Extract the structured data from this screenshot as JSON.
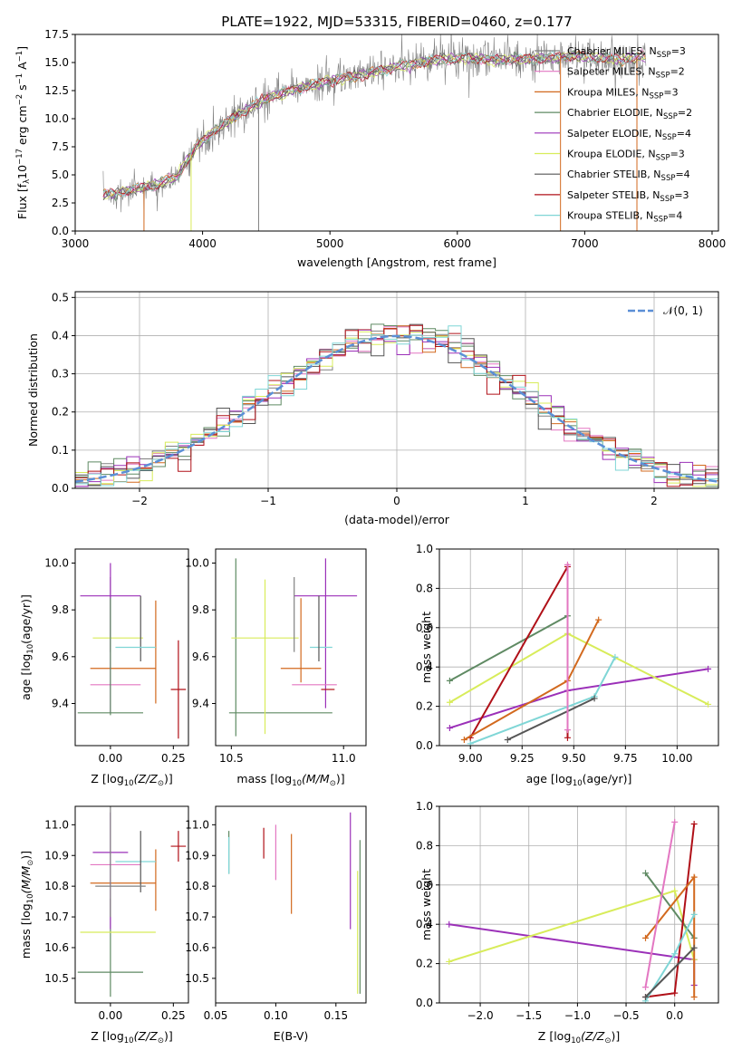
{
  "colors": {
    "chabrier_miles": "#808080",
    "salpeter_miles": "#e377c2",
    "kroupa_miles": "#d2691e",
    "chabrier_elodie": "#5f8a63",
    "salpeter_elodie": "#9b30b8",
    "kroupa_elodie": "#d8ec5a",
    "chabrier_stelib": "#555555",
    "salpeter_stelib": "#b01018",
    "kroupa_stelib": "#7fd6d6",
    "gaussian": "#5b8fd6"
  },
  "chart_data": [
    {
      "id": "spectrum",
      "type": "line",
      "title": "PLATE=1922, MJD=53315, FIBERID=0460, z=0.177",
      "xlabel": "wavelength [Angstrom, rest frame]",
      "ylabel_parts": [
        "Flux [f",
        "λ",
        "10",
        "−17",
        " erg cm",
        "−2",
        " s",
        "−1",
        " A",
        "−1",
        "]"
      ],
      "xlim": [
        3000,
        8050
      ],
      "ylim": [
        0,
        17.5
      ],
      "xticks": [
        3000,
        4000,
        5000,
        6000,
        7000,
        8000
      ],
      "yticks": [
        0.0,
        2.5,
        5.0,
        7.5,
        10.0,
        12.5,
        15.0,
        17.5
      ],
      "ytick_labels": [
        "0.0",
        "2.5",
        "5.0",
        "7.5",
        "10.0",
        "12.5",
        "15.0",
        "17.5"
      ],
      "legend_position": "right",
      "continuum": {
        "x": [
          3220,
          3400,
          3600,
          3800,
          3950,
          4100,
          4300,
          4500,
          4700,
          4900,
          5100,
          5300,
          5500,
          5700,
          5900,
          6100,
          6300,
          6500,
          6700,
          6900,
          7100,
          7300,
          7500
        ],
        "y": [
          3.2,
          3.6,
          4.0,
          4.8,
          7.5,
          9.0,
          10.5,
          11.8,
          12.5,
          13.1,
          13.6,
          14.0,
          14.6,
          15.0,
          15.3,
          15.4,
          15.2,
          15.3,
          15.4,
          15.6,
          15.4,
          15.3,
          15.5
        ]
      },
      "spikes": [
        {
          "x": 3540,
          "y": 0.0
        },
        {
          "x": 3910,
          "y": 0.0
        },
        {
          "x": 4440,
          "y": 0.0
        },
        {
          "x": 6810,
          "y": 0.0
        },
        {
          "x": 7410,
          "y": 0.0
        }
      ],
      "series": [
        {
          "key": "chabrier_miles",
          "lib": "Chabrier MILES",
          "n": "3"
        },
        {
          "key": "salpeter_miles",
          "lib": "Salpeter MILES",
          "n": "2"
        },
        {
          "key": "kroupa_miles",
          "lib": "Kroupa MILES",
          "n": "3"
        },
        {
          "key": "chabrier_elodie",
          "lib": "Chabrier ELODIE",
          "n": "2"
        },
        {
          "key": "salpeter_elodie",
          "lib": "Salpeter ELODIE",
          "n": "4"
        },
        {
          "key": "kroupa_elodie",
          "lib": "Kroupa ELODIE",
          "n": "3"
        },
        {
          "key": "chabrier_stelib",
          "lib": "Chabrier STELIB",
          "n": "4"
        },
        {
          "key": "salpeter_stelib",
          "lib": "Salpeter STELIB",
          "n": "3"
        },
        {
          "key": "kroupa_stelib",
          "lib": "Kroupa STELIB",
          "n": "4"
        }
      ],
      "legend_name_prefix": "N",
      "legend_name_sub": "SSP"
    },
    {
      "id": "residuals",
      "type": "line",
      "xlabel": "(data-model)/error",
      "ylabel": "Normed distribution",
      "xlim": [
        -2.5,
        2.5
      ],
      "ylim": [
        0,
        0.515
      ],
      "xticks": [
        -2,
        -1,
        0,
        1,
        2
      ],
      "xtick_labels": [
        "−2",
        "−1",
        "0",
        "1",
        "2"
      ],
      "yticks": [
        0.0,
        0.1,
        0.2,
        0.3,
        0.4,
        0.5
      ],
      "ytick_labels": [
        "0.0",
        "0.1",
        "0.2",
        "0.3",
        "0.4",
        "0.5"
      ],
      "grid": true,
      "gaussian_label": "𝒩(0, 1)",
      "legend_position": "top-right",
      "bin_width": 0.1,
      "bin_start": -2.5,
      "series_keys": [
        "chabrier_miles",
        "salpeter_miles",
        "kroupa_miles",
        "chabrier_elodie",
        "salpeter_elodie",
        "kroupa_elodie",
        "chabrier_stelib",
        "salpeter_stelib",
        "kroupa_stelib"
      ]
    },
    {
      "id": "z_age",
      "type": "scatter",
      "xlabel_parts": [
        "Z [log",
        "10",
        "(Z/Z",
        "⊙",
        ")]"
      ],
      "ylabel_parts": [
        "age  [log",
        "10",
        "(age/yr)]"
      ],
      "xlim": [
        -0.14,
        0.31
      ],
      "ylim": [
        9.22,
        10.06
      ],
      "xticks": [
        0.0,
        0.25
      ],
      "xtick_labels": [
        "0.00",
        "0.25"
      ],
      "yticks": [
        9.4,
        9.6,
        9.8,
        10.0
      ],
      "ytick_labels": [
        "9.4",
        "9.6",
        "9.8",
        "10.0"
      ],
      "points": [
        {
          "key": "chabrier_miles",
          "x": 0.0,
          "y": 9.78,
          "xerr": 0.0,
          "yerr": 0.16
        },
        {
          "key": "salpeter_miles",
          "x": 0.02,
          "y": 9.48,
          "xerr": 0.1,
          "yerr": 0.0
        },
        {
          "key": "kroupa_miles",
          "x": 0.05,
          "y": 9.55,
          "xerr": 0.13,
          "yerr": 0.0
        },
        {
          "key": "kroupa_miles",
          "x": 0.18,
          "y": 9.62,
          "xerr": 0.0,
          "yerr": 0.22
        },
        {
          "key": "chabrier_elodie",
          "x": 0.0,
          "y": 9.36,
          "xerr": 0.13,
          "yerr": 0.0
        },
        {
          "key": "salpeter_elodie",
          "x": 0.0,
          "y": 9.86,
          "xerr": 0.12,
          "yerr": 0.0
        },
        {
          "key": "salpeter_elodie",
          "x": 0.0,
          "y": 9.68,
          "xerr": 0.0,
          "yerr": 0.32
        },
        {
          "key": "kroupa_elodie",
          "x": 0.03,
          "y": 9.68,
          "xerr": 0.1,
          "yerr": 0.0
        },
        {
          "key": "chabrier_stelib",
          "x": 0.12,
          "y": 9.72,
          "xerr": 0.0,
          "yerr": 0.14
        },
        {
          "key": "salpeter_stelib",
          "x": 0.27,
          "y": 9.46,
          "xerr": 0.03,
          "yerr": 0.21
        },
        {
          "key": "kroupa_stelib",
          "x": 0.1,
          "y": 9.64,
          "xerr": 0.08,
          "yerr": 0.0
        },
        {
          "key": "chabrier_elodie",
          "x": 0.0,
          "y": 9.6,
          "xerr": 0.0,
          "yerr": 0.25
        }
      ]
    },
    {
      "id": "mass_age",
      "type": "scatter",
      "xlabel_parts": [
        "mass [log",
        "10",
        "(M/M",
        "⊙",
        ")]"
      ],
      "xlim": [
        10.43,
        11.1
      ],
      "ylim": [
        9.22,
        10.06
      ],
      "xticks": [
        10.5,
        11.0
      ],
      "xtick_labels": [
        "10.5",
        "11.0"
      ],
      "yticks": [
        9.4,
        9.6,
        9.8,
        10.0
      ],
      "ytick_labels": [
        "9.4",
        "9.6",
        "9.8",
        "10.0"
      ],
      "points": [
        {
          "key": "chabrier_elodie",
          "x": 10.52,
          "y": 9.64,
          "xerr": 0.0,
          "yerr": 0.38
        },
        {
          "key": "chabrier_elodie",
          "x": 10.72,
          "y": 9.36,
          "xerr": 0.23,
          "yerr": 0.0
        },
        {
          "key": "kroupa_elodie",
          "x": 10.65,
          "y": 9.68,
          "xerr": 0.15,
          "yerr": 0.0
        },
        {
          "key": "kroupa_elodie",
          "x": 10.65,
          "y": 9.6,
          "xerr": 0.0,
          "yerr": 0.33
        },
        {
          "key": "salpeter_elodie",
          "x": 10.92,
          "y": 9.86,
          "xerr": 0.14,
          "yerr": 0.0
        },
        {
          "key": "salpeter_elodie",
          "x": 10.92,
          "y": 9.7,
          "xerr": 0.0,
          "yerr": 0.32
        },
        {
          "key": "kroupa_miles",
          "x": 10.81,
          "y": 9.55,
          "xerr": 0.09,
          "yerr": 0.0
        },
        {
          "key": "kroupa_miles",
          "x": 10.81,
          "y": 9.67,
          "xerr": 0.0,
          "yerr": 0.18
        },
        {
          "key": "salpeter_miles",
          "x": 10.87,
          "y": 9.48,
          "xerr": 0.1,
          "yerr": 0.0
        },
        {
          "key": "salpeter_stelib",
          "x": 10.93,
          "y": 9.46,
          "xerr": 0.03,
          "yerr": 0.0
        },
        {
          "key": "kroupa_stelib",
          "x": 10.9,
          "y": 9.64,
          "xerr": 0.05,
          "yerr": 0.0
        },
        {
          "key": "chabrier_stelib",
          "x": 10.89,
          "y": 9.72,
          "xerr": 0.0,
          "yerr": 0.14
        },
        {
          "key": "chabrier_miles",
          "x": 10.78,
          "y": 9.78,
          "xerr": 0.0,
          "yerr": 0.16
        }
      ]
    },
    {
      "id": "age_weight",
      "type": "line",
      "xlabel_parts": [
        "age  [log",
        "10",
        "(age/yr)]"
      ],
      "ylabel": "mass weight",
      "xlim": [
        8.85,
        10.2
      ],
      "ylim": [
        0,
        1.0
      ],
      "xticks": [
        9.0,
        9.25,
        9.5,
        9.75,
        10.0
      ],
      "xtick_labels": [
        "9.00",
        "9.25",
        "9.50",
        "9.75",
        "10.00"
      ],
      "yticks": [
        0.0,
        0.2,
        0.4,
        0.6,
        0.8,
        1.0
      ],
      "ytick_labels": [
        "0.0",
        "0.2",
        "0.4",
        "0.6",
        "0.8",
        "1.0"
      ],
      "grid": true,
      "lines": [
        {
          "key": "chabrier_elodie",
          "x": [
            8.9,
            9.47
          ],
          "y": [
            0.33,
            0.66
          ]
        },
        {
          "key": "salpeter_elodie",
          "x": [
            8.9,
            9.47,
            10.15
          ],
          "y": [
            0.09,
            0.28,
            0.39
          ]
        },
        {
          "key": "kroupa_elodie",
          "x": [
            8.9,
            9.47,
            10.15
          ],
          "y": [
            0.22,
            0.57,
            0.21
          ]
        },
        {
          "key": "salpeter_stelib",
          "x": [
            9.0,
            9.47,
            9.47
          ],
          "y": [
            0.04,
            0.91,
            0.04
          ]
        },
        {
          "key": "kroupa_miles",
          "x": [
            8.97,
            9.47,
            9.62
          ],
          "y": [
            0.03,
            0.33,
            0.64
          ]
        },
        {
          "key": "kroupa_stelib",
          "x": [
            9.0,
            9.6,
            9.7
          ],
          "y": [
            0.01,
            0.25,
            0.45
          ]
        },
        {
          "key": "chabrier_stelib",
          "x": [
            9.18,
            9.6
          ],
          "y": [
            0.03,
            0.24
          ]
        },
        {
          "key": "salpeter_miles",
          "x": [
            9.47,
            9.47
          ],
          "y": [
            0.08,
            0.92
          ]
        }
      ]
    },
    {
      "id": "z_mass",
      "type": "scatter",
      "xlabel_parts": [
        "Z [log",
        "10",
        "(Z/Z",
        "⊙",
        ")]"
      ],
      "ylabel_parts": [
        "mass [log",
        "10",
        "(M/M",
        "⊙",
        ")]"
      ],
      "xlim": [
        -0.14,
        0.31
      ],
      "ylim": [
        10.42,
        11.06
      ],
      "xticks": [
        0.0,
        0.25
      ],
      "xtick_labels": [
        "0.00",
        "0.25"
      ],
      "yticks": [
        10.5,
        10.6,
        10.7,
        10.8,
        10.9,
        11.0
      ],
      "ytick_labels": [
        "10.5",
        "10.6",
        "10.7",
        "10.8",
        "10.9",
        "11.0"
      ],
      "points": [
        {
          "key": "chabrier_elodie",
          "x": 0.0,
          "y": 10.52,
          "xerr": 0.13,
          "yerr": 0.0
        },
        {
          "key": "chabrier_elodie",
          "x": 0.0,
          "y": 10.6,
          "xerr": 0.0,
          "yerr": 0.16
        },
        {
          "key": "kroupa_elodie",
          "x": 0.03,
          "y": 10.65,
          "xerr": 0.15,
          "yerr": 0.0
        },
        {
          "key": "kroupa_miles",
          "x": 0.05,
          "y": 10.81,
          "xerr": 0.13,
          "yerr": 0.0
        },
        {
          "key": "kroupa_miles",
          "x": 0.18,
          "y": 10.82,
          "xerr": 0.0,
          "yerr": 0.1
        },
        {
          "key": "salpeter_miles",
          "x": 0.02,
          "y": 10.87,
          "xerr": 0.1,
          "yerr": 0.0
        },
        {
          "key": "salpeter_elodie",
          "x": 0.0,
          "y": 10.91,
          "xerr": 0.07,
          "yerr": 0.0
        },
        {
          "key": "salpeter_elodie",
          "x": 0.0,
          "y": 10.85,
          "xerr": 0.0,
          "yerr": 0.19
        },
        {
          "key": "chabrier_miles",
          "x": 0.0,
          "y": 10.9,
          "xerr": 0.0,
          "yerr": 0.2
        },
        {
          "key": "kroupa_stelib",
          "x": 0.1,
          "y": 10.88,
          "xerr": 0.08,
          "yerr": 0.0
        },
        {
          "key": "chabrier_stelib",
          "x": 0.12,
          "y": 10.88,
          "xerr": 0.0,
          "yerr": 0.1
        },
        {
          "key": "salpeter_stelib",
          "x": 0.27,
          "y": 10.93,
          "xerr": 0.03,
          "yerr": 0.05
        },
        {
          "key": "chabrier_miles",
          "x": 0.04,
          "y": 10.8,
          "xerr": 0.1,
          "yerr": 0.0
        }
      ]
    },
    {
      "id": "ebv_mass",
      "type": "scatter",
      "xlabel": "E(B-V)",
      "xlim": [
        0.05,
        0.175
      ],
      "ylim": [
        10.42,
        11.06
      ],
      "xticks": [
        0.05,
        0.1,
        0.15
      ],
      "xtick_labels": [
        "0.05",
        "0.10",
        "0.15"
      ],
      "yticks": [
        10.5,
        10.6,
        10.7,
        10.8,
        10.9,
        11.0
      ],
      "ytick_labels": [
        "10.5",
        "10.6",
        "10.7",
        "10.8",
        "10.9",
        "11.0"
      ],
      "points": [
        {
          "key": "chabrier_elodie",
          "x": 0.061,
          "y": 10.91,
          "xerr": 0.0,
          "yerr": 0.07
        },
        {
          "key": "kroupa_stelib",
          "x": 0.061,
          "y": 10.9,
          "xerr": 0.0,
          "yerr": 0.06
        },
        {
          "key": "salpeter_stelib",
          "x": 0.09,
          "y": 10.94,
          "xerr": 0.0,
          "yerr": 0.05
        },
        {
          "key": "salpeter_miles",
          "x": 0.1,
          "y": 10.91,
          "xerr": 0.0,
          "yerr": 0.09
        },
        {
          "key": "kroupa_miles",
          "x": 0.113,
          "y": 10.84,
          "xerr": 0.0,
          "yerr": 0.13
        },
        {
          "key": "salpeter_elodie",
          "x": 0.162,
          "y": 10.85,
          "xerr": 0.0,
          "yerr": 0.19
        },
        {
          "key": "chabrier_elodie",
          "x": 0.17,
          "y": 10.7,
          "xerr": 0.0,
          "yerr": 0.25
        },
        {
          "key": "kroupa_elodie",
          "x": 0.168,
          "y": 10.65,
          "xerr": 0.0,
          "yerr": 0.2
        }
      ]
    },
    {
      "id": "z_weight",
      "type": "line",
      "xlabel_parts": [
        "Z [log",
        "10",
        "(Z/Z",
        "⊙",
        ")]"
      ],
      "ylabel": "mass weight",
      "xlim": [
        -2.42,
        0.45
      ],
      "ylim": [
        0,
        1.0
      ],
      "xticks": [
        -2.0,
        -1.5,
        -1.0,
        -0.5,
        0.0
      ],
      "xtick_labels": [
        "−2.0",
        "−1.5",
        "−1.0",
        "−0.5",
        "0.0"
      ],
      "yticks": [
        0.0,
        0.2,
        0.4,
        0.6,
        0.8,
        1.0
      ],
      "ytick_labels": [
        "0.0",
        "0.2",
        "0.4",
        "0.6",
        "0.8",
        "1.0"
      ],
      "grid": true,
      "lines": [
        {
          "key": "salpeter_elodie",
          "x": [
            -2.32,
            0.2,
            0.2
          ],
          "y": [
            0.4,
            0.22,
            0.09
          ]
        },
        {
          "key": "kroupa_elodie",
          "x": [
            -2.32,
            0.0,
            0.2
          ],
          "y": [
            0.21,
            0.57,
            0.22
          ]
        },
        {
          "key": "chabrier_elodie",
          "x": [
            -0.3,
            0.2
          ],
          "y": [
            0.66,
            0.33
          ]
        },
        {
          "key": "salpeter_stelib",
          "x": [
            -0.3,
            0.0,
            0.2
          ],
          "y": [
            0.03,
            0.05,
            0.91
          ]
        },
        {
          "key": "kroupa_miles",
          "x": [
            -0.3,
            0.2,
            0.2
          ],
          "y": [
            0.33,
            0.64,
            0.03
          ]
        },
        {
          "key": "kroupa_stelib",
          "x": [
            -0.3,
            0.0,
            0.2
          ],
          "y": [
            0.01,
            0.25,
            0.45
          ]
        },
        {
          "key": "salpeter_miles",
          "x": [
            -0.3,
            0.0
          ],
          "y": [
            0.08,
            0.92
          ]
        },
        {
          "key": "chabrier_stelib",
          "x": [
            -0.3,
            0.2
          ],
          "y": [
            0.03,
            0.28
          ]
        }
      ]
    }
  ]
}
